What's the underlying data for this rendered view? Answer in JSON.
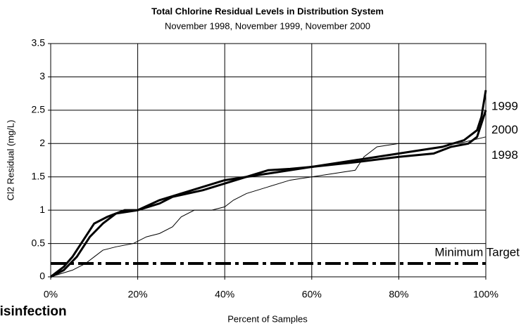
{
  "chart_data": {
    "type": "line",
    "title": "Total Chlorine Residual Levels in Distribution System",
    "subtitle": "November 1998, November 1999, November 2000",
    "x_label": "Percent of Samples",
    "y_label": "Cl2 Residual (mg/L)",
    "xlim": [
      0,
      100
    ],
    "xticks": [
      {
        "value": 0,
        "label": "0%"
      },
      {
        "value": 20,
        "label": "20%"
      },
      {
        "value": 40,
        "label": "40%"
      },
      {
        "value": 60,
        "label": "60%"
      },
      {
        "value": 80,
        "label": "80%"
      },
      {
        "value": 100,
        "label": "100%"
      }
    ],
    "ylim": [
      0,
      3.5
    ],
    "yticks": [
      0,
      0.5,
      1,
      1.5,
      2,
      2.5,
      3,
      3.5
    ],
    "grid": true,
    "series": [
      {
        "name": "1999",
        "color": "#000000",
        "width": 3,
        "x": [
          0,
          3,
          5,
          8,
          10,
          13,
          17,
          20,
          25,
          28,
          35,
          40,
          45,
          50,
          55,
          60,
          65,
          70,
          75,
          80,
          85,
          90,
          95,
          98,
          99,
          100
        ],
        "values": [
          0,
          0.15,
          0.3,
          0.6,
          0.8,
          0.9,
          1.0,
          1.0,
          1.1,
          1.2,
          1.3,
          1.4,
          1.5,
          1.55,
          1.6,
          1.65,
          1.7,
          1.75,
          1.8,
          1.85,
          1.9,
          1.95,
          2.05,
          2.2,
          2.4,
          2.8
        ]
      },
      {
        "name": "2000",
        "color": "#000000",
        "width": 3,
        "x": [
          0,
          3,
          6,
          9,
          12,
          15,
          20,
          25,
          30,
          35,
          40,
          45,
          50,
          55,
          60,
          70,
          80,
          88,
          92,
          96,
          98,
          100
        ],
        "values": [
          0,
          0.1,
          0.3,
          0.6,
          0.8,
          0.95,
          1.0,
          1.15,
          1.25,
          1.35,
          1.45,
          1.5,
          1.6,
          1.62,
          1.65,
          1.72,
          1.8,
          1.85,
          1.95,
          2.0,
          2.1,
          2.5
        ]
      },
      {
        "name": "1998",
        "color": "#000000",
        "width": 1,
        "x": [
          0,
          5,
          8,
          10,
          12,
          15,
          19,
          22,
          25,
          28,
          30,
          33,
          37,
          40,
          42,
          45,
          50,
          55,
          60,
          65,
          70,
          72,
          75,
          80,
          90,
          95,
          100
        ],
        "values": [
          0,
          0.1,
          0.2,
          0.3,
          0.4,
          0.45,
          0.5,
          0.6,
          0.65,
          0.75,
          0.9,
          1.0,
          1.0,
          1.05,
          1.15,
          1.25,
          1.35,
          1.45,
          1.5,
          1.55,
          1.6,
          1.8,
          1.95,
          2.0,
          2.0,
          2.02,
          2.1
        ]
      }
    ],
    "series_label_y": [
      2.55,
      2.2,
      1.82
    ],
    "target": {
      "label": "Minimum Target",
      "value": 0.2
    },
    "fragment": "disinfection"
  }
}
